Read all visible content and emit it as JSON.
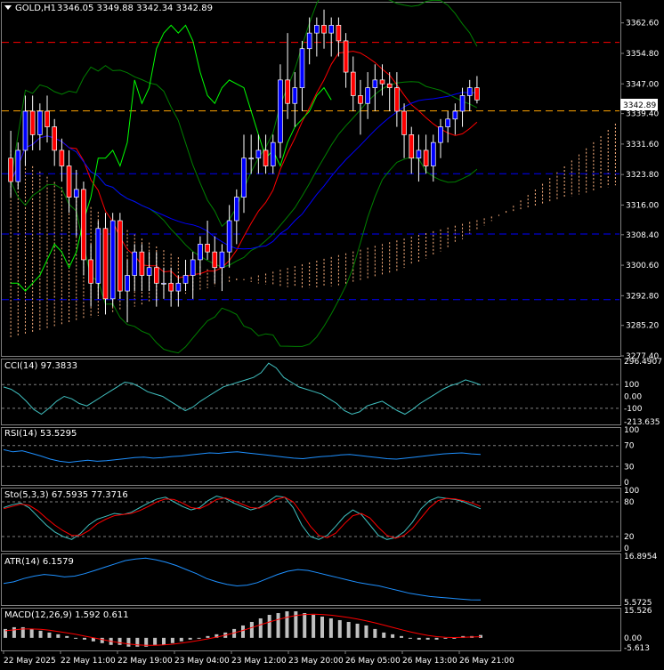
{
  "header": {
    "symbol": "GOLD,H1",
    "ohlc": "3346.05 3349.88 3342.34 3342.89",
    "menu_arrow_icon": "triangle-down-icon"
  },
  "colors": {
    "bg": "#000000",
    "frame": "#808080",
    "bull": "#ffffff",
    "bear": "#ff0000",
    "candle_body_bull": "#0000ff",
    "tenkan": "#ff0000",
    "kijun": "#0000ff",
    "chikou": "#00ff00",
    "bollinger": "#008000",
    "cloud": "#ffb380",
    "level_red": "#ff0000",
    "level_orange": "#ffa500",
    "level_blue": "#0000ff",
    "cci_line": "#40c0c0",
    "rsi_line": "#1e90ff",
    "stoch_main": "#40c0c0",
    "stoch_signal": "#ff0000",
    "atr_line": "#1e90ff",
    "macd_hist": "#c0c0c0",
    "macd_signal": "#ff0000"
  },
  "price_axis": {
    "labels": [
      "3362.60",
      "3354.80",
      "3347.00",
      "3339.40",
      "3331.60",
      "3323.80",
      "3316.00",
      "3308.40",
      "3300.60",
      "3292.80",
      "3285.20",
      "3277.40"
    ],
    "current_price": "3342.89"
  },
  "levels": {
    "red": 3357.6,
    "orange": 3340.1,
    "blue": [
      3324.0,
      3308.6,
      3291.8
    ]
  },
  "time_axis": [
    "22 May 2025",
    "22 May 11:00",
    "22 May 19:00",
    "23 May 04:00",
    "23 May 12:00",
    "23 May 20:00",
    "26 May 05:00",
    "26 May 13:00",
    "26 May 21:00"
  ],
  "cci": {
    "title": "CCI(14) 97.3833",
    "labels": [
      "296.4907",
      "100",
      "0.00",
      "-100",
      "-213.635"
    ]
  },
  "rsi": {
    "title": "RSI(14) 53.5295",
    "labels": [
      "100",
      "70",
      "30",
      "0"
    ]
  },
  "stoch": {
    "title": "Sto(5,3,3) 67.5935 77.3716",
    "labels": [
      "100",
      "80",
      "20",
      "0"
    ]
  },
  "atr": {
    "title": "ATR(14) 6.1579",
    "labels": [
      "16.8954",
      "5.5725"
    ]
  },
  "macd": {
    "title": "MACD(12,26,9) 1.592 0.611",
    "labels": [
      "15.526",
      "0.00",
      "-5.613"
    ]
  },
  "chart_data": [
    {
      "type": "candlestick",
      "title": "GOLD,H1",
      "ylim": [
        3277.4,
        3368.0
      ],
      "candles": [
        [
          3328,
          3335,
          3318,
          3322
        ],
        [
          3322,
          3332,
          3320,
          3330
        ],
        [
          3330,
          3344,
          3326,
          3340
        ],
        [
          3340,
          3344,
          3330,
          3334
        ],
        [
          3334,
          3342,
          3330,
          3340
        ],
        [
          3340,
          3344,
          3332,
          3336
        ],
        [
          3336,
          3338,
          3326,
          3330
        ],
        [
          3330,
          3333,
          3322,
          3326
        ],
        [
          3326,
          3330,
          3314,
          3318
        ],
        [
          3318,
          3325,
          3308,
          3320
        ],
        [
          3320,
          3322,
          3298,
          3302
        ],
        [
          3302,
          3306,
          3290,
          3296
        ],
        [
          3296,
          3312,
          3292,
          3310
        ],
        [
          3310,
          3314,
          3288,
          3292
        ],
        [
          3292,
          3314,
          3290,
          3312
        ],
        [
          3312,
          3314,
          3292,
          3294
        ],
        [
          3294,
          3302,
          3286,
          3298
        ],
        [
          3298,
          3306,
          3294,
          3304
        ],
        [
          3304,
          3306,
          3294,
          3298
        ],
        [
          3298,
          3304,
          3294,
          3300
        ],
        [
          3300,
          3304,
          3290,
          3296
        ],
        [
          3296,
          3300,
          3292,
          3296
        ],
        [
          3296,
          3300,
          3290,
          3294
        ],
        [
          3294,
          3298,
          3290,
          3296
        ],
        [
          3296,
          3302,
          3294,
          3298
        ],
        [
          3298,
          3304,
          3292,
          3302
        ],
        [
          3302,
          3308,
          3298,
          3306
        ],
        [
          3306,
          3312,
          3302,
          3304
        ],
        [
          3304,
          3308,
          3296,
          3300
        ],
        [
          3300,
          3306,
          3294,
          3304
        ],
        [
          3304,
          3316,
          3300,
          3312
        ],
        [
          3312,
          3320,
          3306,
          3318
        ],
        [
          3318,
          3334,
          3314,
          3328
        ],
        [
          3328,
          3334,
          3324,
          3328
        ],
        [
          3328,
          3334,
          3324,
          3330
        ],
        [
          3330,
          3334,
          3324,
          3326
        ],
        [
          3326,
          3334,
          3324,
          3332
        ],
        [
          3332,
          3352,
          3328,
          3348
        ],
        [
          3348,
          3360,
          3338,
          3342
        ],
        [
          3342,
          3350,
          3336,
          3346
        ],
        [
          3346,
          3358,
          3340,
          3356
        ],
        [
          3356,
          3364,
          3352,
          3360
        ],
        [
          3360,
          3364,
          3354,
          3362
        ],
        [
          3362,
          3366,
          3356,
          3360
        ],
        [
          3360,
          3364,
          3354,
          3362
        ],
        [
          3362,
          3364,
          3354,
          3358
        ],
        [
          3358,
          3360,
          3346,
          3350
        ],
        [
          3350,
          3354,
          3340,
          3344
        ],
        [
          3344,
          3348,
          3334,
          3342
        ],
        [
          3342,
          3350,
          3338,
          3346
        ],
        [
          3346,
          3352,
          3340,
          3348
        ],
        [
          3348,
          3352,
          3344,
          3347
        ],
        [
          3347,
          3350,
          3340,
          3346
        ],
        [
          3346,
          3350,
          3336,
          3340
        ],
        [
          3340,
          3342,
          3328,
          3334
        ],
        [
          3334,
          3336,
          3324,
          3328
        ],
        [
          3328,
          3334,
          3322,
          3330
        ],
        [
          3330,
          3334,
          3324,
          3326
        ],
        [
          3326,
          3334,
          3322,
          3332
        ],
        [
          3332,
          3338,
          3328,
          3336
        ],
        [
          3336,
          3340,
          3332,
          3338
        ],
        [
          3338,
          3342,
          3334,
          3340
        ],
        [
          3340,
          3346,
          3336,
          3344
        ],
        [
          3344,
          3348,
          3340,
          3346
        ],
        [
          3346,
          3349,
          3342,
          3342.89
        ]
      ]
    },
    {
      "type": "line",
      "title": "CCI(14) 97.3833",
      "ylim": [
        -213.635,
        296.4907
      ],
      "series": [
        {
          "values": [
            80,
            60,
            20,
            -40,
            -110,
            -150,
            -100,
            -40,
            0,
            -20,
            -60,
            -80,
            -40,
            0,
            40,
            80,
            120,
            110,
            80,
            40,
            20,
            0,
            -40,
            -80,
            -120,
            -90,
            -40,
            0,
            40,
            80,
            100,
            120,
            140,
            160,
            200,
            280,
            240,
            160,
            120,
            80,
            60,
            40,
            20,
            -20,
            -60,
            -120,
            -150,
            -130,
            -80,
            -60,
            -40,
            -80,
            -120,
            -150,
            -110,
            -60,
            -20,
            20,
            60,
            90,
            110,
            140,
            120,
            97
          ]
        }
      ]
    },
    {
      "type": "line",
      "title": "RSI(14) 53.5295",
      "ylim": [
        0,
        100
      ],
      "series": [
        {
          "values": [
            62,
            58,
            60,
            55,
            50,
            44,
            40,
            38,
            40,
            42,
            40,
            41,
            43,
            45,
            47,
            48,
            46,
            47,
            49,
            50,
            52,
            54,
            56,
            55,
            57,
            58,
            56,
            54,
            52,
            50,
            48,
            46,
            45,
            47,
            49,
            50,
            52,
            53,
            51,
            49,
            47,
            45,
            44,
            46,
            48,
            50,
            52,
            54,
            55,
            56,
            54,
            53
          ]
        }
      ]
    },
    {
      "type": "line",
      "title": "Sto(5,3,3) 67.5935 77.3716",
      "ylim": [
        0,
        100
      ],
      "series": [
        {
          "values": [
            70,
            75,
            78,
            70,
            55,
            40,
            28,
            20,
            15,
            25,
            40,
            50,
            55,
            60,
            58,
            62,
            70,
            78,
            85,
            88,
            80,
            72,
            66,
            70,
            82,
            90,
            86,
            78,
            72,
            66,
            70,
            80,
            90,
            88,
            70,
            40,
            20,
            15,
            22,
            38,
            55,
            66,
            58,
            40,
            22,
            15,
            18,
            28,
            45,
            68,
            82,
            88,
            86,
            84,
            80,
            74,
            68
          ]
        },
        {
          "values": [
            68,
            72,
            76,
            74,
            65,
            52,
            40,
            30,
            22,
            22,
            30,
            42,
            50,
            56,
            58,
            60,
            65,
            72,
            80,
            85,
            84,
            78,
            70,
            68,
            75,
            84,
            87,
            82,
            76,
            70,
            69,
            75,
            84,
            88,
            80,
            60,
            38,
            22,
            18,
            26,
            42,
            56,
            60,
            52,
            36,
            22,
            17,
            22,
            34,
            52,
            70,
            82,
            86,
            85,
            82,
            78,
            72
          ]
        }
      ]
    },
    {
      "type": "line",
      "title": "ATR(14) 6.1579",
      "ylim": [
        5.5725,
        16.8954
      ],
      "series": [
        {
          "values": [
            10.2,
            10.6,
            11.4,
            12.0,
            12.4,
            12.2,
            11.8,
            12.0,
            12.6,
            13.4,
            14.2,
            15.0,
            15.8,
            16.2,
            16.4,
            16.0,
            15.4,
            14.6,
            13.6,
            12.6,
            11.4,
            10.6,
            10.0,
            9.6,
            9.8,
            10.4,
            11.4,
            12.4,
            13.2,
            13.6,
            13.4,
            12.8,
            12.2,
            11.6,
            11.0,
            10.4,
            10.0,
            9.6,
            9.0,
            8.4,
            7.8,
            7.4,
            7.0,
            6.8,
            6.6,
            6.4,
            6.2,
            6.16
          ]
        }
      ]
    },
    {
      "type": "bar",
      "title": "MACD(12,26,9) 1.592 0.611",
      "ylim": [
        -5.613,
        15.526
      ],
      "series": [
        {
          "name": "histogram",
          "values": [
            5,
            6,
            6,
            5,
            4,
            3,
            2,
            1,
            0,
            -1,
            -2,
            -3,
            -4,
            -4,
            -5,
            -5,
            -5,
            -4,
            -4,
            -3,
            -2,
            -1,
            0,
            1,
            2,
            3,
            5,
            7,
            9,
            11,
            13,
            14,
            15,
            15,
            14,
            13,
            12,
            11,
            10,
            9,
            8,
            7,
            5,
            3,
            2,
            1,
            0,
            -1,
            -1,
            -1,
            0,
            0,
            1,
            1,
            1.6
          ]
        },
        {
          "name": "signal",
          "values": [
            4,
            4.5,
            5,
            5,
            4.8,
            4.3,
            3.6,
            2.8,
            2,
            1,
            0,
            -1,
            -2,
            -2.8,
            -3.5,
            -4,
            -4.2,
            -4.2,
            -4,
            -3.6,
            -3,
            -2.3,
            -1.5,
            -0.6,
            0.4,
            1.5,
            2.8,
            4.2,
            5.8,
            7.4,
            9,
            10.4,
            11.6,
            12.6,
            13.2,
            13.4,
            13.2,
            12.8,
            12.2,
            11.5,
            10.6,
            9.6,
            8.5,
            7.2,
            5.9,
            4.6,
            3.4,
            2.3,
            1.4,
            0.7,
            0.3,
            0.2,
            0.3,
            0.5,
            0.61
          ]
        }
      ]
    }
  ]
}
